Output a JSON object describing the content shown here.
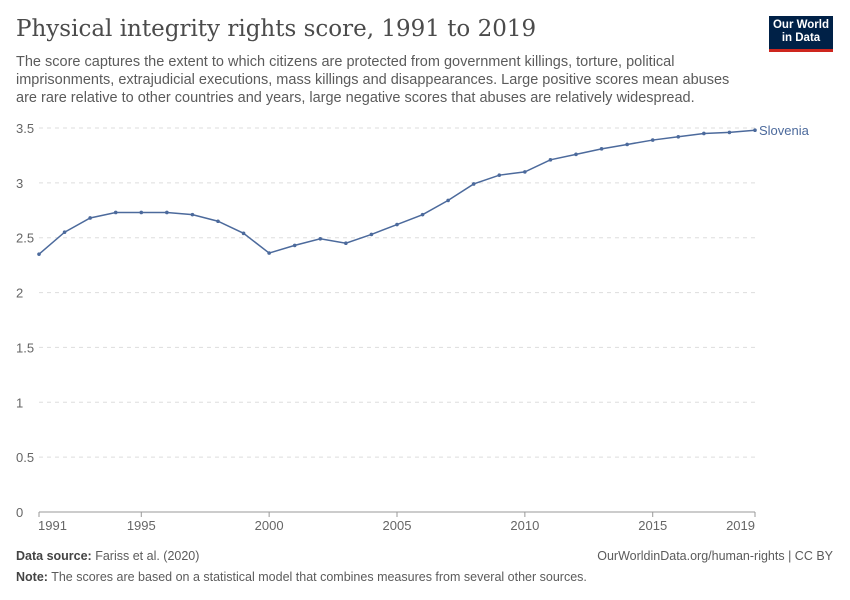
{
  "header": {
    "title": "Physical integrity rights score, 1991 to 2019",
    "subtitle": "The score captures the extent to which citizens are protected from government killings, torture, political imprisonments, extrajudicial executions, mass killings and disappearances. Large positive scores mean abuses are rare relative to other countries and years, large negative scores that abuses are relatively widespread.",
    "logo": "Our World in Data"
  },
  "footer": {
    "source_label": "Data source:",
    "source": "Fariss et al. (2020)",
    "url": "OurWorldinData.org/human-rights | CC BY",
    "note_label": "Note:",
    "note": "The scores are based on a statistical model that combines measures from several other sources."
  },
  "chart_data": {
    "type": "line",
    "title": "Physical integrity rights score, 1991 to 2019",
    "x": [
      1991,
      1992,
      1993,
      1994,
      1995,
      1996,
      1997,
      1998,
      1999,
      2000,
      2001,
      2002,
      2003,
      2004,
      2005,
      2006,
      2007,
      2008,
      2009,
      2010,
      2011,
      2012,
      2013,
      2014,
      2015,
      2016,
      2017,
      2018,
      2019
    ],
    "series": [
      {
        "name": "Slovenia",
        "color": "#4c6a9c",
        "values": [
          2.35,
          2.55,
          2.68,
          2.73,
          2.73,
          2.73,
          2.71,
          2.65,
          2.54,
          2.36,
          2.43,
          2.49,
          2.45,
          2.53,
          2.62,
          2.71,
          2.84,
          2.99,
          3.07,
          3.1,
          3.21,
          3.26,
          3.31,
          3.35,
          3.39,
          3.42,
          3.45,
          3.46,
          3.48
        ]
      }
    ],
    "xticks": [
      "1991",
      "1995",
      "2000",
      "2005",
      "2010",
      "2015",
      "2019"
    ],
    "yticks": [
      "0",
      "0.5",
      "1",
      "1.5",
      "2",
      "2.5",
      "3",
      "3.5"
    ],
    "xlim": [
      1991,
      2019
    ],
    "ylim": [
      0,
      3.5
    ],
    "grid": "horizontal dashed",
    "legend": "inline-right"
  }
}
